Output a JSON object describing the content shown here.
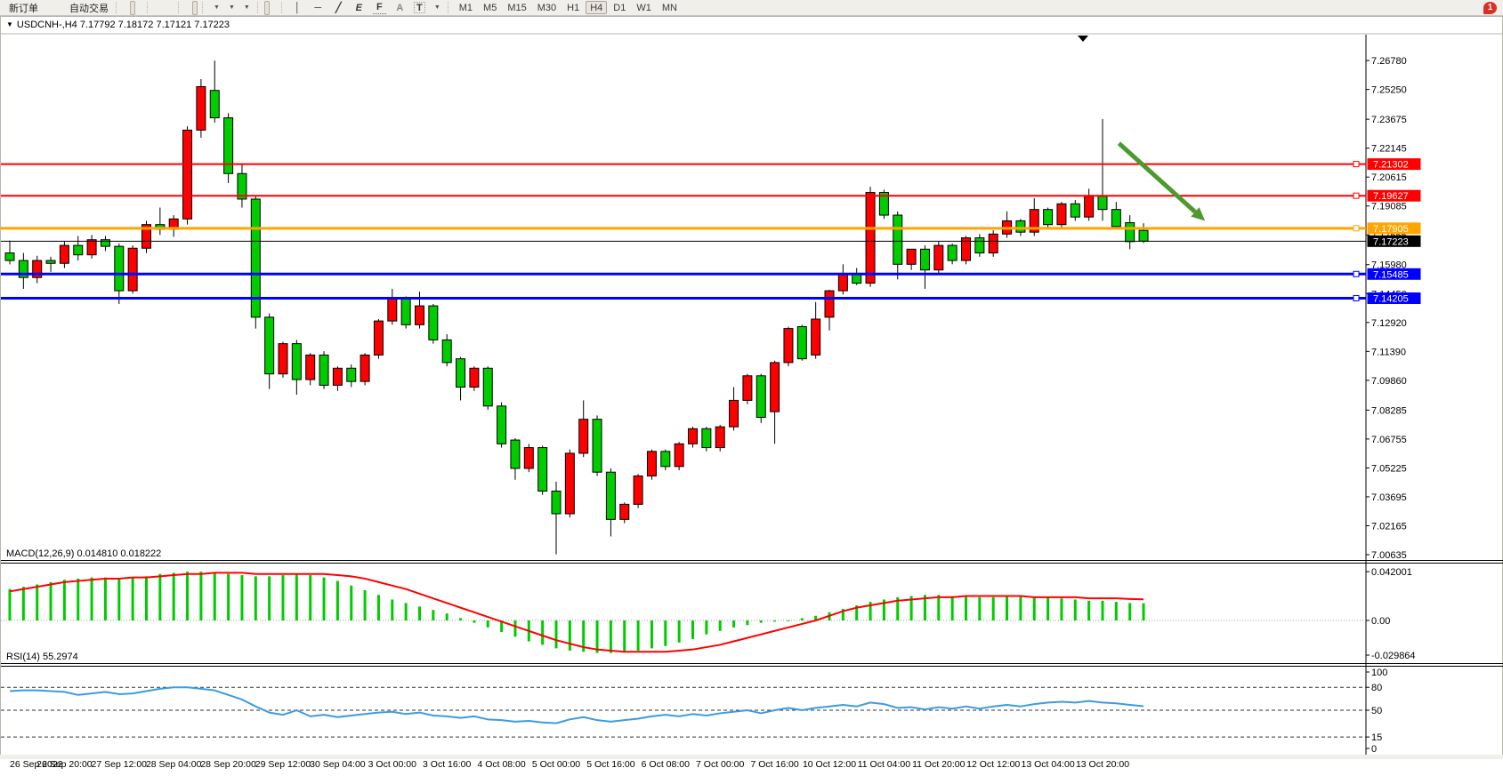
{
  "toolbar": {
    "new_order_label": "新订单",
    "auto_trading_label": "自动交易",
    "notification_count": "1",
    "timeframes": [
      "M1",
      "M5",
      "M15",
      "M30",
      "H1",
      "H4",
      "D1",
      "W1",
      "MN"
    ],
    "active_timeframe": "H4",
    "glyphs": {
      "crosshair": "+",
      "vline": "│",
      "hline": "─",
      "trendline": "╱",
      "channel": "E",
      "fibo": "F",
      "text_tool": "A",
      "label_tool": "T",
      "caret": "▼"
    }
  },
  "chart": {
    "title_marker": "▼",
    "title": "USDCNH-,H4  7.17792 7.18172 7.17121 7.17223",
    "macd_label": "MACD(12,26,9) 0.014810 0.018222",
    "rsi_label": "RSI(14) 55.2974"
  },
  "chart_data": [
    {
      "type": "candlestick",
      "symbol": "USDCNH-",
      "timeframe": "H4",
      "open": 7.17792,
      "high": 7.18172,
      "low": 7.17121,
      "close": 7.17223,
      "ylim": [
        7.004,
        7.2815
      ],
      "colors": {
        "bull": "#ff0000",
        "bear": "#00cc00",
        "wick": "#000000",
        "current_price_line": "#000000"
      },
      "y_ticks": [
        "7.26780",
        "7.25250",
        "7.23675",
        "7.22145",
        "7.20615",
        "7.19085",
        "7.17555",
        "7.15980",
        "7.14450",
        "7.12920",
        "7.11390",
        "7.09860",
        "7.08285",
        "7.06755",
        "7.05225",
        "7.03695",
        "7.02165",
        "7.00635"
      ],
      "x_labels": [
        "26 Sep 2022",
        "26 Sep 20:00",
        "27 Sep 12:00",
        "28 Sep 04:00",
        "28 Sep 20:00",
        "29 Sep 12:00",
        "30 Sep 04:00",
        "3 Oct 00:00",
        "3 Oct 16:00",
        "4 Oct 08:00",
        "5 Oct 00:00",
        "5 Oct 16:00",
        "6 Oct 08:00",
        "7 Oct 00:00",
        "7 Oct 16:00",
        "10 Oct 12:00",
        "11 Oct 04:00",
        "11 Oct 20:00",
        "12 Oct 12:00",
        "13 Oct 04:00",
        "13 Oct 20:00"
      ],
      "label_every_n_bars": 4,
      "horizontal_lines": [
        {
          "price": 7.21302,
          "label": "7.21302",
          "color": "#ff0000",
          "width": 2
        },
        {
          "price": 7.19627,
          "label": "7.19627",
          "color": "#ff0000",
          "width": 2
        },
        {
          "price": 7.17905,
          "label": "7.17905",
          "color": "#ffa500",
          "width": 3
        },
        {
          "price": 7.15485,
          "label": "7.15485",
          "color": "#0000ff",
          "width": 3
        },
        {
          "price": 7.14205,
          "label": "7.14205",
          "color": "#0000ff",
          "width": 3
        }
      ],
      "current_price": {
        "price": 7.17223,
        "label": "7.17223",
        "badge_color": "#000000"
      },
      "trend_arrow": {
        "from_bar": 81.2,
        "from_price": 7.224,
        "to_bar": 87.5,
        "to_price": 7.183,
        "color": "#4c9a2e",
        "width": 5
      },
      "candles": [
        [
          7.166,
          7.1725,
          7.16,
          7.162
        ],
        [
          7.162,
          7.166,
          7.147,
          7.153
        ],
        [
          7.153,
          7.1645,
          7.15,
          7.162
        ],
        [
          7.162,
          7.164,
          7.156,
          7.1605
        ],
        [
          7.1605,
          7.172,
          7.158,
          7.17
        ],
        [
          7.17,
          7.175,
          7.162,
          7.165
        ],
        [
          7.165,
          7.1755,
          7.163,
          7.173
        ],
        [
          7.173,
          7.175,
          7.167,
          7.1695
        ],
        [
          7.1695,
          7.171,
          7.139,
          7.146
        ],
        [
          7.146,
          7.17,
          7.1445,
          7.1685
        ],
        [
          7.1685,
          7.183,
          7.166,
          7.181
        ],
        [
          7.181,
          7.19,
          7.1755,
          7.1785
        ],
        [
          7.1785,
          7.186,
          7.1745,
          7.184
        ],
        [
          7.184,
          7.233,
          7.181,
          7.231
        ],
        [
          7.231,
          7.258,
          7.227,
          7.254
        ],
        [
          7.252,
          7.2678,
          7.235,
          7.2375
        ],
        [
          7.2375,
          7.24,
          7.203,
          7.208
        ],
        [
          7.208,
          7.2135,
          7.19,
          7.1945
        ],
        [
          7.1945,
          7.196,
          7.126,
          7.132
        ],
        [
          7.132,
          7.134,
          7.094,
          7.102
        ],
        [
          7.102,
          7.119,
          7.1,
          7.118
        ],
        [
          7.118,
          7.12,
          7.091,
          7.099
        ],
        [
          7.099,
          7.113,
          7.096,
          7.112
        ],
        [
          7.112,
          7.114,
          7.094,
          7.096
        ],
        [
          7.096,
          7.106,
          7.093,
          7.105
        ],
        [
          7.105,
          7.107,
          7.095,
          7.098
        ],
        [
          7.098,
          7.113,
          7.096,
          7.112
        ],
        [
          7.112,
          7.131,
          7.11,
          7.13
        ],
        [
          7.13,
          7.147,
          7.128,
          7.142
        ],
        [
          7.142,
          7.143,
          7.126,
          7.128
        ],
        [
          7.128,
          7.1455,
          7.126,
          7.138
        ],
        [
          7.138,
          7.139,
          7.118,
          7.12
        ],
        [
          7.12,
          7.123,
          7.106,
          7.108
        ],
        [
          7.11,
          7.111,
          7.088,
          7.095
        ],
        [
          7.095,
          7.106,
          7.093,
          7.105
        ],
        [
          7.105,
          7.106,
          7.083,
          7.085
        ],
        [
          7.085,
          7.087,
          7.063,
          7.065
        ],
        [
          7.067,
          7.068,
          7.046,
          7.052
        ],
        [
          7.052,
          7.065,
          7.05,
          7.063
        ],
        [
          7.063,
          7.064,
          7.038,
          7.04
        ],
        [
          7.04,
          7.045,
          7.0065,
          7.028
        ],
        [
          7.028,
          7.062,
          7.026,
          7.06
        ],
        [
          7.06,
          7.088,
          7.058,
          7.078
        ],
        [
          7.078,
          7.08,
          7.048,
          7.05
        ],
        [
          7.05,
          7.052,
          7.016,
          7.025
        ],
        [
          7.025,
          7.034,
          7.023,
          7.033
        ],
        [
          7.033,
          7.049,
          7.031,
          7.048
        ],
        [
          7.048,
          7.062,
          7.046,
          7.061
        ],
        [
          7.061,
          7.062,
          7.051,
          7.053
        ],
        [
          7.053,
          7.066,
          7.051,
          7.065
        ],
        [
          7.065,
          7.074,
          7.063,
          7.073
        ],
        [
          7.073,
          7.074,
          7.061,
          7.063
        ],
        [
          7.063,
          7.075,
          7.061,
          7.074
        ],
        [
          7.074,
          7.095,
          7.072,
          7.088
        ],
        [
          7.088,
          7.102,
          7.086,
          7.101
        ],
        [
          7.101,
          7.102,
          7.076,
          7.079
        ],
        [
          7.082,
          7.109,
          7.065,
          7.108
        ],
        [
          7.108,
          7.127,
          7.106,
          7.126
        ],
        [
          7.127,
          7.128,
          7.109,
          7.11
        ],
        [
          7.112,
          7.14,
          7.11,
          7.131
        ],
        [
          7.132,
          7.1465,
          7.125,
          7.146
        ],
        [
          7.146,
          7.16,
          7.144,
          7.155
        ],
        [
          7.155,
          7.158,
          7.149,
          7.15
        ],
        [
          7.15,
          7.201,
          7.148,
          7.198
        ],
        [
          7.198,
          7.1995,
          7.184,
          7.186
        ],
        [
          7.186,
          7.188,
          7.152,
          7.16
        ],
        [
          7.16,
          7.168,
          7.157,
          7.168
        ],
        [
          7.168,
          7.17,
          7.147,
          7.157
        ],
        [
          7.157,
          7.172,
          7.155,
          7.17
        ],
        [
          7.17,
          7.171,
          7.16,
          7.162
        ],
        [
          7.162,
          7.175,
          7.16,
          7.174
        ],
        [
          7.174,
          7.176,
          7.164,
          7.166
        ],
        [
          7.166,
          7.178,
          7.164,
          7.176
        ],
        [
          7.176,
          7.188,
          7.174,
          7.183
        ],
        [
          7.183,
          7.184,
          7.175,
          7.177
        ],
        [
          7.177,
          7.195,
          7.175,
          7.189
        ],
        [
          7.189,
          7.19,
          7.179,
          7.181
        ],
        [
          7.181,
          7.193,
          7.179,
          7.192
        ],
        [
          7.192,
          7.194,
          7.183,
          7.185
        ],
        [
          7.185,
          7.2,
          7.183,
          7.196
        ],
        [
          7.196,
          7.2368,
          7.183,
          7.189
        ],
        [
          7.189,
          7.193,
          7.179,
          7.18
        ],
        [
          7.182,
          7.186,
          7.168,
          7.172
        ],
        [
          7.17792,
          7.18172,
          7.17121,
          7.17223
        ]
      ]
    },
    {
      "type": "bar",
      "name": "MACD",
      "params": [
        12,
        26,
        9
      ],
      "current_macd": 0.01481,
      "current_signal": 0.018222,
      "y_ticks": [
        "0.042001",
        "0.00",
        "-0.029864"
      ],
      "colors": {
        "histogram": "#00cc00",
        "signal": "#ff0000"
      },
      "values": [
        0.027,
        0.029,
        0.031,
        0.033,
        0.035,
        0.036,
        0.037,
        0.037,
        0.036,
        0.037,
        0.038,
        0.04,
        0.041,
        0.042,
        0.042,
        0.041,
        0.04,
        0.039,
        0.038,
        0.038,
        0.039,
        0.04,
        0.039,
        0.037,
        0.034,
        0.03,
        0.026,
        0.022,
        0.018,
        0.015,
        0.012,
        0.009,
        0.006,
        0.002,
        -0.002,
        -0.006,
        -0.01,
        -0.014,
        -0.018,
        -0.021,
        -0.024,
        -0.026,
        -0.027,
        -0.028,
        -0.028,
        -0.027,
        -0.026,
        -0.024,
        -0.022,
        -0.019,
        -0.016,
        -0.012,
        -0.009,
        -0.006,
        -0.004,
        -0.002,
        -0.001,
        0.0,
        0.002,
        0.004,
        0.007,
        0.01,
        0.013,
        0.016,
        0.018,
        0.02,
        0.021,
        0.022,
        0.022,
        0.021,
        0.021,
        0.02,
        0.02,
        0.021,
        0.021,
        0.02,
        0.02,
        0.019,
        0.018,
        0.017,
        0.017,
        0.016,
        0.015,
        0.0148
      ],
      "signal": [
        0.025,
        0.027,
        0.029,
        0.031,
        0.033,
        0.034,
        0.035,
        0.036,
        0.036,
        0.037,
        0.037,
        0.038,
        0.039,
        0.04,
        0.04,
        0.041,
        0.041,
        0.041,
        0.04,
        0.04,
        0.04,
        0.04,
        0.04,
        0.04,
        0.039,
        0.038,
        0.036,
        0.033,
        0.03,
        0.027,
        0.023,
        0.019,
        0.015,
        0.011,
        0.007,
        0.003,
        -0.001,
        -0.005,
        -0.009,
        -0.013,
        -0.017,
        -0.02,
        -0.023,
        -0.025,
        -0.026,
        -0.027,
        -0.027,
        -0.027,
        -0.027,
        -0.026,
        -0.025,
        -0.023,
        -0.021,
        -0.018,
        -0.015,
        -0.012,
        -0.009,
        -0.006,
        -0.003,
        0.0,
        0.004,
        0.008,
        0.011,
        0.013,
        0.015,
        0.017,
        0.018,
        0.019,
        0.02,
        0.02,
        0.021,
        0.021,
        0.021,
        0.021,
        0.021,
        0.02,
        0.02,
        0.02,
        0.02,
        0.019,
        0.019,
        0.019,
        0.0185,
        0.0182
      ]
    },
    {
      "type": "line",
      "name": "RSI",
      "period": 14,
      "current": 55.2974,
      "y_ticks": [
        "100",
        "80",
        "50",
        "15",
        "0"
      ],
      "levels": [
        80,
        50,
        15
      ],
      "color": "#3d9be0",
      "values": [
        75,
        76,
        76,
        75,
        74,
        70,
        72,
        74,
        71,
        72,
        75,
        78,
        80,
        80,
        78,
        76,
        70,
        64,
        55,
        47,
        44,
        50,
        42,
        44,
        41,
        43,
        45,
        47,
        48,
        45,
        47,
        43,
        42,
        40,
        42,
        38,
        37,
        35,
        36,
        34,
        33,
        38,
        41,
        37,
        35,
        37,
        39,
        42,
        44,
        42,
        45,
        43,
        46,
        48,
        50,
        46,
        50,
        53,
        50,
        53,
        55,
        57,
        55,
        60,
        58,
        53,
        54,
        51,
        54,
        52,
        55,
        52,
        55,
        57,
        55,
        58,
        60,
        61,
        60,
        62,
        60,
        59,
        57,
        55.3
      ]
    }
  ]
}
